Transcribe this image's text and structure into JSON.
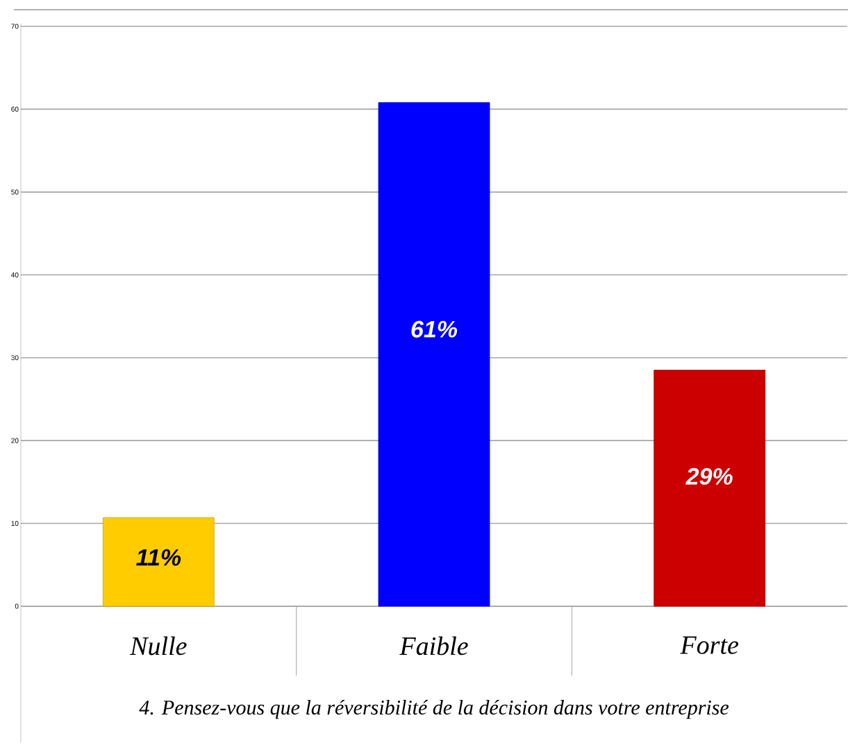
{
  "chart_data": {
    "type": "bar",
    "title": "4. Pensez-vous que la réversibilité de la décision dans votre entreprise",
    "categories": [
      "Nulle",
      "Faible",
      "Forte"
    ],
    "values": [
      10.7,
      60.8,
      28.5
    ],
    "colors": [
      "#ffcc00",
      "#0000ff",
      "#cc0000"
    ],
    "value_labels": [
      "11%",
      "61%",
      "29%"
    ],
    "ylim": [
      0,
      70
    ],
    "yticks": [
      0,
      10,
      20,
      30,
      40,
      50,
      60,
      70
    ],
    "grid": "y"
  }
}
